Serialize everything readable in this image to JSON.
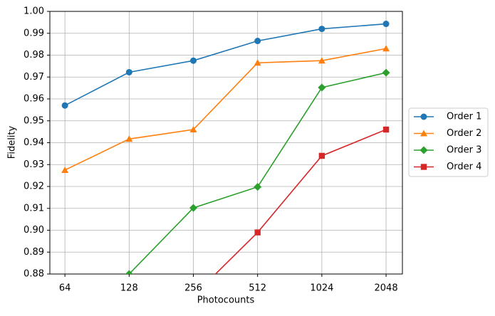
{
  "chart_data": {
    "type": "line",
    "x_label": "Photocounts",
    "y_label": "Fidelity",
    "x": [
      64,
      128,
      256,
      512,
      1024,
      2048
    ],
    "xscale": "log",
    "xlim": [
      54.4,
      2443
    ],
    "xticks": [
      64,
      128,
      256,
      512,
      1024,
      2048
    ],
    "ylim": [
      0.88,
      1.0
    ],
    "yticks": [
      0.88,
      0.89,
      {
        "value": 0.9,
        "label": "0.90"
      },
      0.91,
      0.92,
      0.93,
      0.94,
      0.95,
      0.96,
      0.97,
      0.98,
      0.99,
      {
        "value": 1.0,
        "label": "1.00"
      }
    ],
    "grid": true,
    "legend": "outside right",
    "series": [
      {
        "name": "Order 1",
        "color": "#1f77b4",
        "marker": "circle",
        "values": [
          0.957,
          0.9722,
          0.9775,
          0.9865,
          0.992,
          0.9943
        ]
      },
      {
        "name": "Order 2",
        "color": "#ff7f0e",
        "marker": "triangle",
        "values": [
          0.9275,
          0.9417,
          0.946,
          0.9765,
          0.9775,
          0.983
        ]
      },
      {
        "name": "Order 3",
        "color": "#2ca02c",
        "marker": "diamond",
        "values": [
          null,
          0.88,
          0.9102,
          0.9198,
          0.9652,
          0.972
        ]
      },
      {
        "name": "Order 4",
        "color": "#d62728",
        "marker": "square",
        "values": [
          null,
          null,
          0.87,
          0.899,
          0.934,
          0.946
        ]
      }
    ]
  }
}
